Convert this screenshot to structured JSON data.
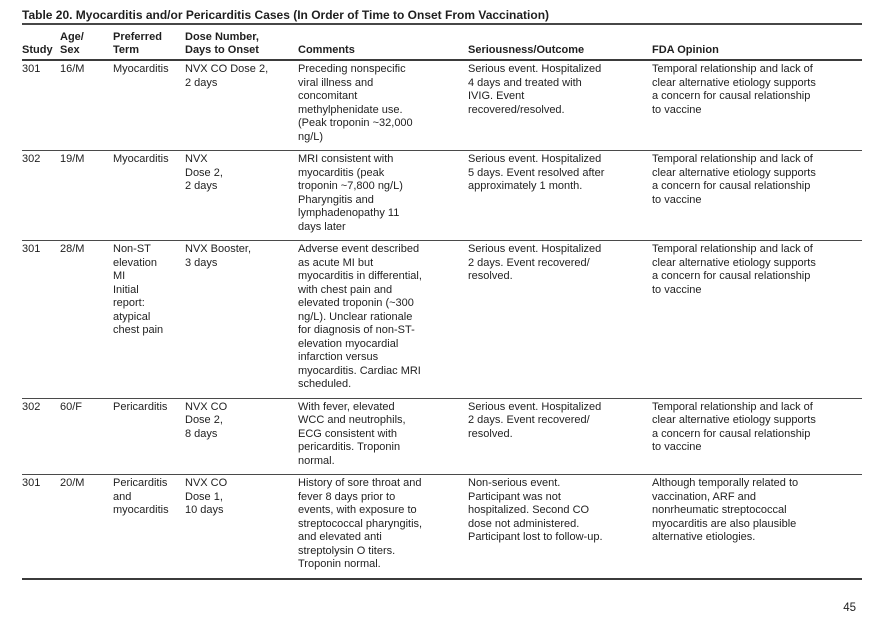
{
  "table": {
    "title": "Table 20. Myocarditis and/or Pericarditis Cases (In Order of Time to Onset From Vaccination)",
    "headers": [
      "Study",
      "Age/\nSex",
      "Preferred\nTerm",
      "Dose Number,\nDays to Onset",
      "Comments",
      "Seriousness/Outcome",
      "FDA Opinion"
    ],
    "rows": [
      {
        "study": "301",
        "age_sex": "16/M",
        "term": "Myocarditis",
        "dose": "NVX CO Dose 2,\n2 days",
        "comments": "Preceding nonspecific\nviral illness and\nconcomitant\nmethylphenidate use.\n(Peak troponin ~32,000\nng/L)",
        "outcome": "Serious event. Hospitalized\n4 days and treated with\nIVIG. Event\nrecovered/resolved.",
        "fda_opinion": "Temporal relationship and lack of\nclear alternative etiology supports\na concern for causal relationship\nto vaccine"
      },
      {
        "study": "302",
        "age_sex": "19/M",
        "term": "Myocarditis",
        "dose": "NVX\nDose 2,\n2 days",
        "comments": "MRI consistent with\nmyocarditis (peak\ntroponin ~7,800 ng/L)\nPharyngitis and\nlymphadenopathy 11\ndays later",
        "outcome": "Serious event. Hospitalized\n5 days. Event resolved after\napproximately 1 month.",
        "fda_opinion": "Temporal relationship and lack of\nclear alternative etiology supports\na concern for causal relationship\nto vaccine"
      },
      {
        "study": "301",
        "age_sex": "28/M",
        "term": "Non-ST\nelevation\nMI\nInitial\nreport:\natypical\nchest pain",
        "dose": "NVX Booster,\n3 days",
        "comments": "Adverse event described\nas acute MI but\nmyocarditis in differential,\nwith chest pain and\nelevated troponin (~300\nng/L). Unclear rationale\nfor diagnosis of non-ST-\nelevation myocardial\ninfarction versus\nmyocarditis. Cardiac MRI\nscheduled.",
        "outcome": "Serious event. Hospitalized\n2 days. Event recovered/\nresolved.",
        "fda_opinion": "Temporal relationship and lack of\nclear alternative etiology supports\na concern for causal relationship\nto vaccine"
      },
      {
        "study": "302",
        "age_sex": "60/F",
        "term": "Pericarditis",
        "dose": "NVX CO\nDose 2,\n8 days",
        "comments": "With fever, elevated\nWCC and neutrophils,\nECG consistent with\npericarditis. Troponin\nnormal.",
        "outcome": "Serious event. Hospitalized\n2 days. Event recovered/\nresolved.",
        "fda_opinion": "Temporal relationship and lack of\nclear alternative etiology supports\na concern for causal relationship\nto vaccine"
      },
      {
        "study": "301",
        "age_sex": "20/M",
        "term": "Pericarditis\nand\nmyocarditis",
        "dose": "NVX CO\nDose 1,\n10 days",
        "comments": "History of sore throat and\nfever 8 days prior to\nevents, with exposure to\nstreptococcal pharyngitis,\nand elevated anti\nstreptolysin O titers.\nTroponin normal.",
        "outcome": "Non-serious event.\nParticipant was not\nhospitalized. Second CO\ndose not administered.\nParticipant lost to follow-up.",
        "fda_opinion": "Although temporally related to\nvaccination, ARF and\nnonrheumatic streptococcal\nmyocarditis are also plausible\nalternative etiologies."
      }
    ]
  },
  "footer": {
    "page_number": "45"
  }
}
